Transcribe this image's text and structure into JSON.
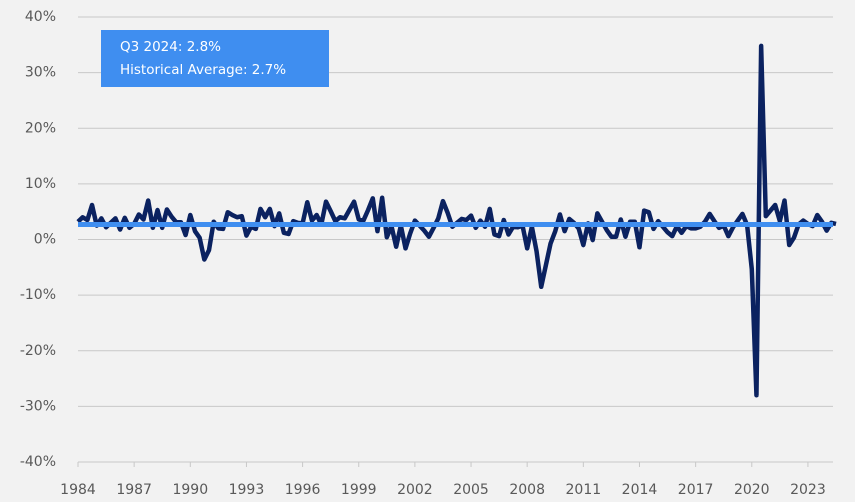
{
  "chart_data": {
    "type": "line",
    "annotations": [
      "Q3 2024: 2.8%",
      "Historical Average: 2.7%"
    ],
    "average": 2.7,
    "average_color": "#3f8ef0",
    "color": "#0b2260",
    "grid": true,
    "ylim": [
      -40,
      40
    ],
    "yticks": [
      {
        "value": -40,
        "label": "-40%"
      },
      {
        "value": -30,
        "label": "-30%"
      },
      {
        "value": -20,
        "label": "-20%"
      },
      {
        "value": -10,
        "label": "-10%"
      },
      {
        "value": 0,
        "label": "0%"
      },
      {
        "value": 10,
        "label": "10%"
      },
      {
        "value": 20,
        "label": "20%"
      },
      {
        "value": 30,
        "label": "30%"
      },
      {
        "value": 40,
        "label": "40%"
      }
    ],
    "xlim": [
      1984,
      2024.5
    ],
    "xticks": [
      1984,
      1987,
      1990,
      1993,
      1996,
      1999,
      2002,
      2005,
      2008,
      2011,
      2014,
      2017,
      2020,
      2023
    ],
    "x": [
      1984,
      1984.25,
      1984.5,
      1984.75,
      1985,
      1985.25,
      1985.5,
      1985.75,
      1986,
      1986.25,
      1986.5,
      1986.75,
      1987,
      1987.25,
      1987.5,
      1987.75,
      1988,
      1988.25,
      1988.5,
      1988.75,
      1989,
      1989.25,
      1989.5,
      1989.75,
      1990,
      1990.25,
      1990.5,
      1990.75,
      1991,
      1991.25,
      1991.5,
      1991.75,
      1992,
      1992.25,
      1992.5,
      1992.75,
      1993,
      1993.25,
      1993.5,
      1993.75,
      1994,
      1994.25,
      1994.5,
      1994.75,
      1995,
      1995.25,
      1995.5,
      1995.75,
      1996,
      1996.25,
      1996.5,
      1996.75,
      1997,
      1997.25,
      1997.5,
      1997.75,
      1998,
      1998.25,
      1998.5,
      1998.75,
      1999,
      1999.25,
      1999.5,
      1999.75,
      2000,
      2000.25,
      2000.5,
      2000.75,
      2001,
      2001.25,
      2001.5,
      2001.75,
      2002,
      2002.25,
      2002.5,
      2002.75,
      2003,
      2003.25,
      2003.5,
      2003.75,
      2004,
      2004.25,
      2004.5,
      2004.75,
      2005,
      2005.25,
      2005.5,
      2005.75,
      2006,
      2006.25,
      2006.5,
      2006.75,
      2007,
      2007.25,
      2007.5,
      2007.75,
      2008,
      2008.25,
      2008.5,
      2008.75,
      2009,
      2009.25,
      2009.5,
      2009.75,
      2010,
      2010.25,
      2010.5,
      2010.75,
      2011,
      2011.25,
      2011.5,
      2011.75,
      2012,
      2012.25,
      2012.5,
      2012.75,
      2013,
      2013.25,
      2013.5,
      2013.75,
      2014,
      2014.25,
      2014.5,
      2014.75,
      2015,
      2015.25,
      2015.5,
      2015.75,
      2016,
      2016.25,
      2016.5,
      2016.75,
      2017,
      2017.25,
      2017.5,
      2017.75,
      2018,
      2018.25,
      2018.5,
      2018.75,
      2019,
      2019.25,
      2019.5,
      2019.75,
      2020,
      2020.25,
      2020.5,
      2020.75,
      2021,
      2021.25,
      2021.5,
      2021.75,
      2022,
      2022.25,
      2022.5,
      2022.75,
      2023,
      2023.25,
      2023.5,
      2023.75,
      2024,
      2024.25,
      2024.5
    ],
    "values": [
      3.2,
      4.0,
      3.5,
      6.2,
      2.5,
      3.8,
      2.2,
      3.0,
      3.8,
      1.8,
      3.9,
      2.1,
      2.8,
      4.5,
      3.6,
      7.0,
      2.1,
      5.3,
      2.1,
      5.4,
      4.1,
      3.1,
      3.1,
      0.8,
      4.4,
      1.5,
      0.3,
      -3.6,
      -1.9,
      3.2,
      2.0,
      1.9,
      4.9,
      4.4,
      4.0,
      4.2,
      0.7,
      2.3,
      1.9,
      5.5,
      4.0,
      5.5,
      2.4,
      4.7,
      1.2,
      1.0,
      3.3,
      3.0,
      2.9,
      6.7,
      3.4,
      4.4,
      2.7,
      6.8,
      5.1,
      3.3,
      4.0,
      3.8,
      5.3,
      6.8,
      3.6,
      3.4,
      5.3,
      7.4,
      1.5,
      7.5,
      0.4,
      2.4,
      -1.3,
      2.5,
      -1.6,
      1.1,
      3.4,
      2.5,
      1.6,
      0.5,
      2.1,
      3.8,
      6.9,
      4.8,
      2.3,
      3.0,
      3.7,
      3.5,
      4.3,
      2.1,
      3.4,
      2.3,
      5.5,
      0.9,
      0.6,
      3.5,
      0.9,
      2.3,
      2.2,
      2.5,
      -1.6,
      2.3,
      -2.1,
      -8.5,
      -4.6,
      -0.7,
      1.5,
      4.5,
      1.5,
      3.7,
      3.0,
      2.0,
      -1.0,
      2.9,
      -0.1,
      4.7,
      3.2,
      1.7,
      0.5,
      0.5,
      3.6,
      0.5,
      3.2,
      3.2,
      -1.4,
      5.2,
      4.9,
      1.9,
      3.3,
      2.3,
      1.3,
      0.6,
      2.4,
      1.2,
      2.4,
      2.0,
      2.0,
      2.3,
      3.2,
      4.6,
      3.3,
      2.1,
      2.5,
      0.6,
      2.2,
      3.4,
      4.6,
      2.6,
      -5.3,
      -28.0,
      34.8,
      4.2,
      5.2,
      6.2,
      3.3,
      7.0,
      -1.0,
      0.3,
      2.7,
      3.4,
      2.8,
      2.4,
      4.4,
      3.2,
      1.6,
      3.0,
      2.8
    ]
  }
}
